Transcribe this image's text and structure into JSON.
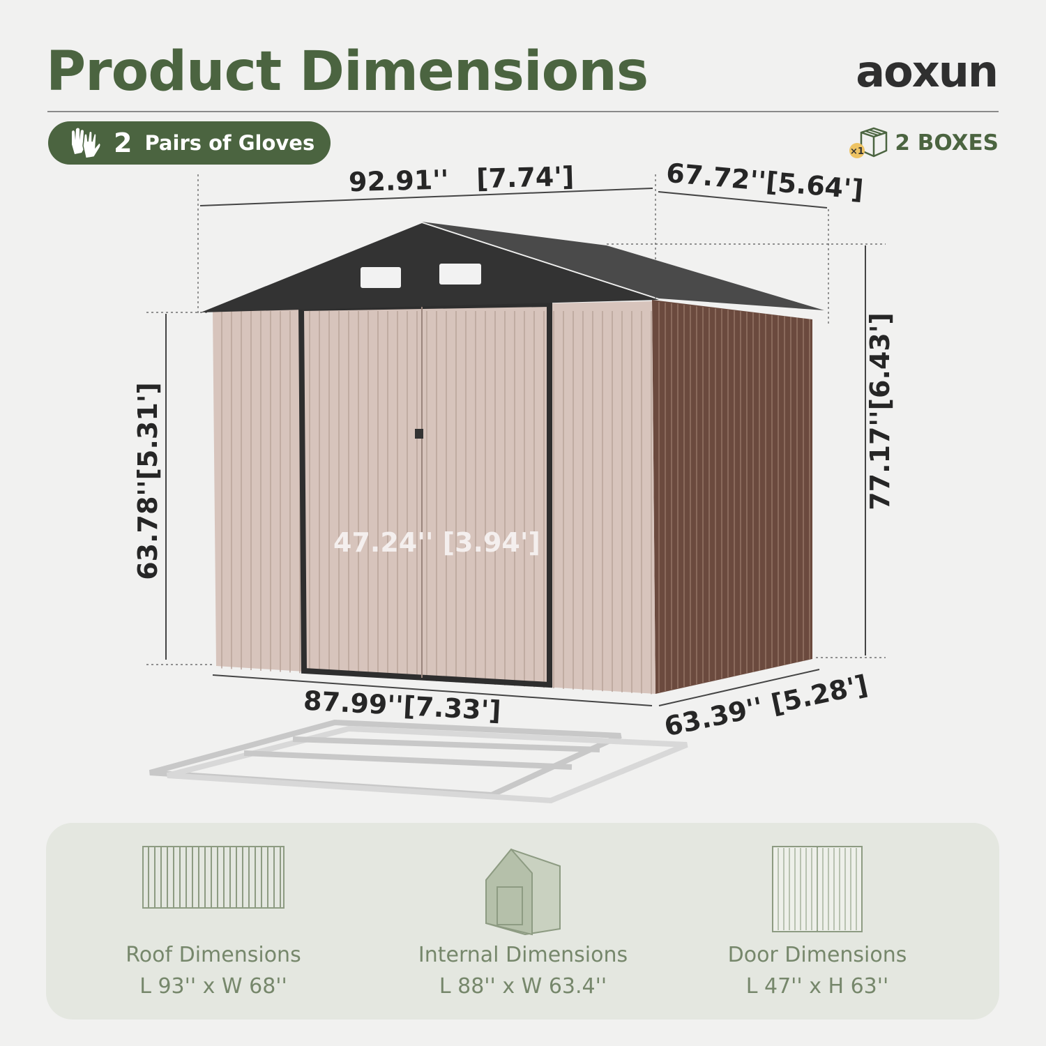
{
  "header": {
    "title": "Product Dimensions",
    "brand": "aoxun"
  },
  "badges": {
    "gloves": {
      "icon": "gloves-icon",
      "count": "2",
      "label": "Pairs of Gloves"
    },
    "boxes": {
      "icon": "box-icon",
      "multiplier": "×1",
      "label": "2 BOXES"
    }
  },
  "dimensions": {
    "roof_width": "92.91''   [7.74']",
    "roof_depth": "67.72''[5.64']",
    "total_height": "77.17''[6.43']",
    "wall_height": "63.78''[5.31']",
    "door_width": "47.24'' [3.94']",
    "base_width": "87.99''[7.33']",
    "base_depth": "63.39'' [5.28']"
  },
  "colors": {
    "brand_green": "#4b6440",
    "panel": "#e4e7e0",
    "caption": "#76876b",
    "shed_front": "#d7c4bc",
    "shed_side": "#6b4a3e",
    "roof": "#3a3a3a"
  },
  "summary": [
    {
      "icon": "roof-panel-icon",
      "name": "Roof Dimensions",
      "value": "L 93'' x W 68''"
    },
    {
      "icon": "shed-icon",
      "name": "Internal Dimensions",
      "value": "L 88'' x W 63.4''"
    },
    {
      "icon": "door-icon",
      "name": "Door Dimensions",
      "value": "L 47'' x H 63''"
    }
  ]
}
